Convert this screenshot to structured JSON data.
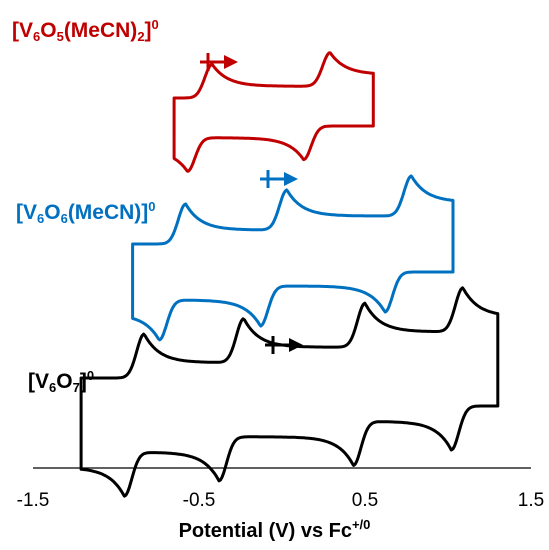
{
  "chart_data": {
    "type": "line",
    "title": "",
    "xlabel_main": "Potential (V) vs Fc",
    "xlabel_sup": "+/0",
    "xlim": [
      -1.5,
      1.5
    ],
    "xticks": [
      "-1.5",
      "-0.5",
      "0.5",
      "1.5"
    ],
    "ylabel": "",
    "grid": false,
    "series": [
      {
        "name_parts": [
          "[V",
          "6",
          "O",
          "5",
          "(MeCN)",
          "2",
          "]",
          "0"
        ],
        "color": "#c00000",
        "redox_pairs": [
          {
            "e_cathodic": -0.57,
            "e_anodic": -0.42
          },
          {
            "e_cathodic": 0.13,
            "e_anodic": 0.29
          }
        ],
        "scan_start": -0.65,
        "scan_vertex": 0.55
      },
      {
        "name_parts": [
          "[V",
          "6",
          "O",
          "6",
          "(MeCN)]",
          "0"
        ],
        "color": "#0070c0",
        "redox_pairs": [
          {
            "e_cathodic": -0.74,
            "e_anodic": -0.58
          },
          {
            "e_cathodic": -0.13,
            "e_anodic": 0.03
          },
          {
            "e_cathodic": 0.62,
            "e_anodic": 0.78
          }
        ],
        "scan_start": -0.9,
        "scan_vertex": 1.03
      },
      {
        "name_parts": [
          "[V",
          "6",
          "O",
          "7",
          "]",
          "0"
        ],
        "color": "#000000",
        "redox_pairs": [
          {
            "e_cathodic": -0.95,
            "e_anodic": -0.83
          },
          {
            "e_cathodic": -0.38,
            "e_anodic": -0.23
          },
          {
            "e_cathodic": 0.43,
            "e_anodic": 0.5
          },
          {
            "e_cathodic": 1.02,
            "e_anodic": 1.09
          }
        ],
        "scan_start": -1.21,
        "scan_vertex": 1.3
      }
    ],
    "scan_direction": "positive"
  }
}
